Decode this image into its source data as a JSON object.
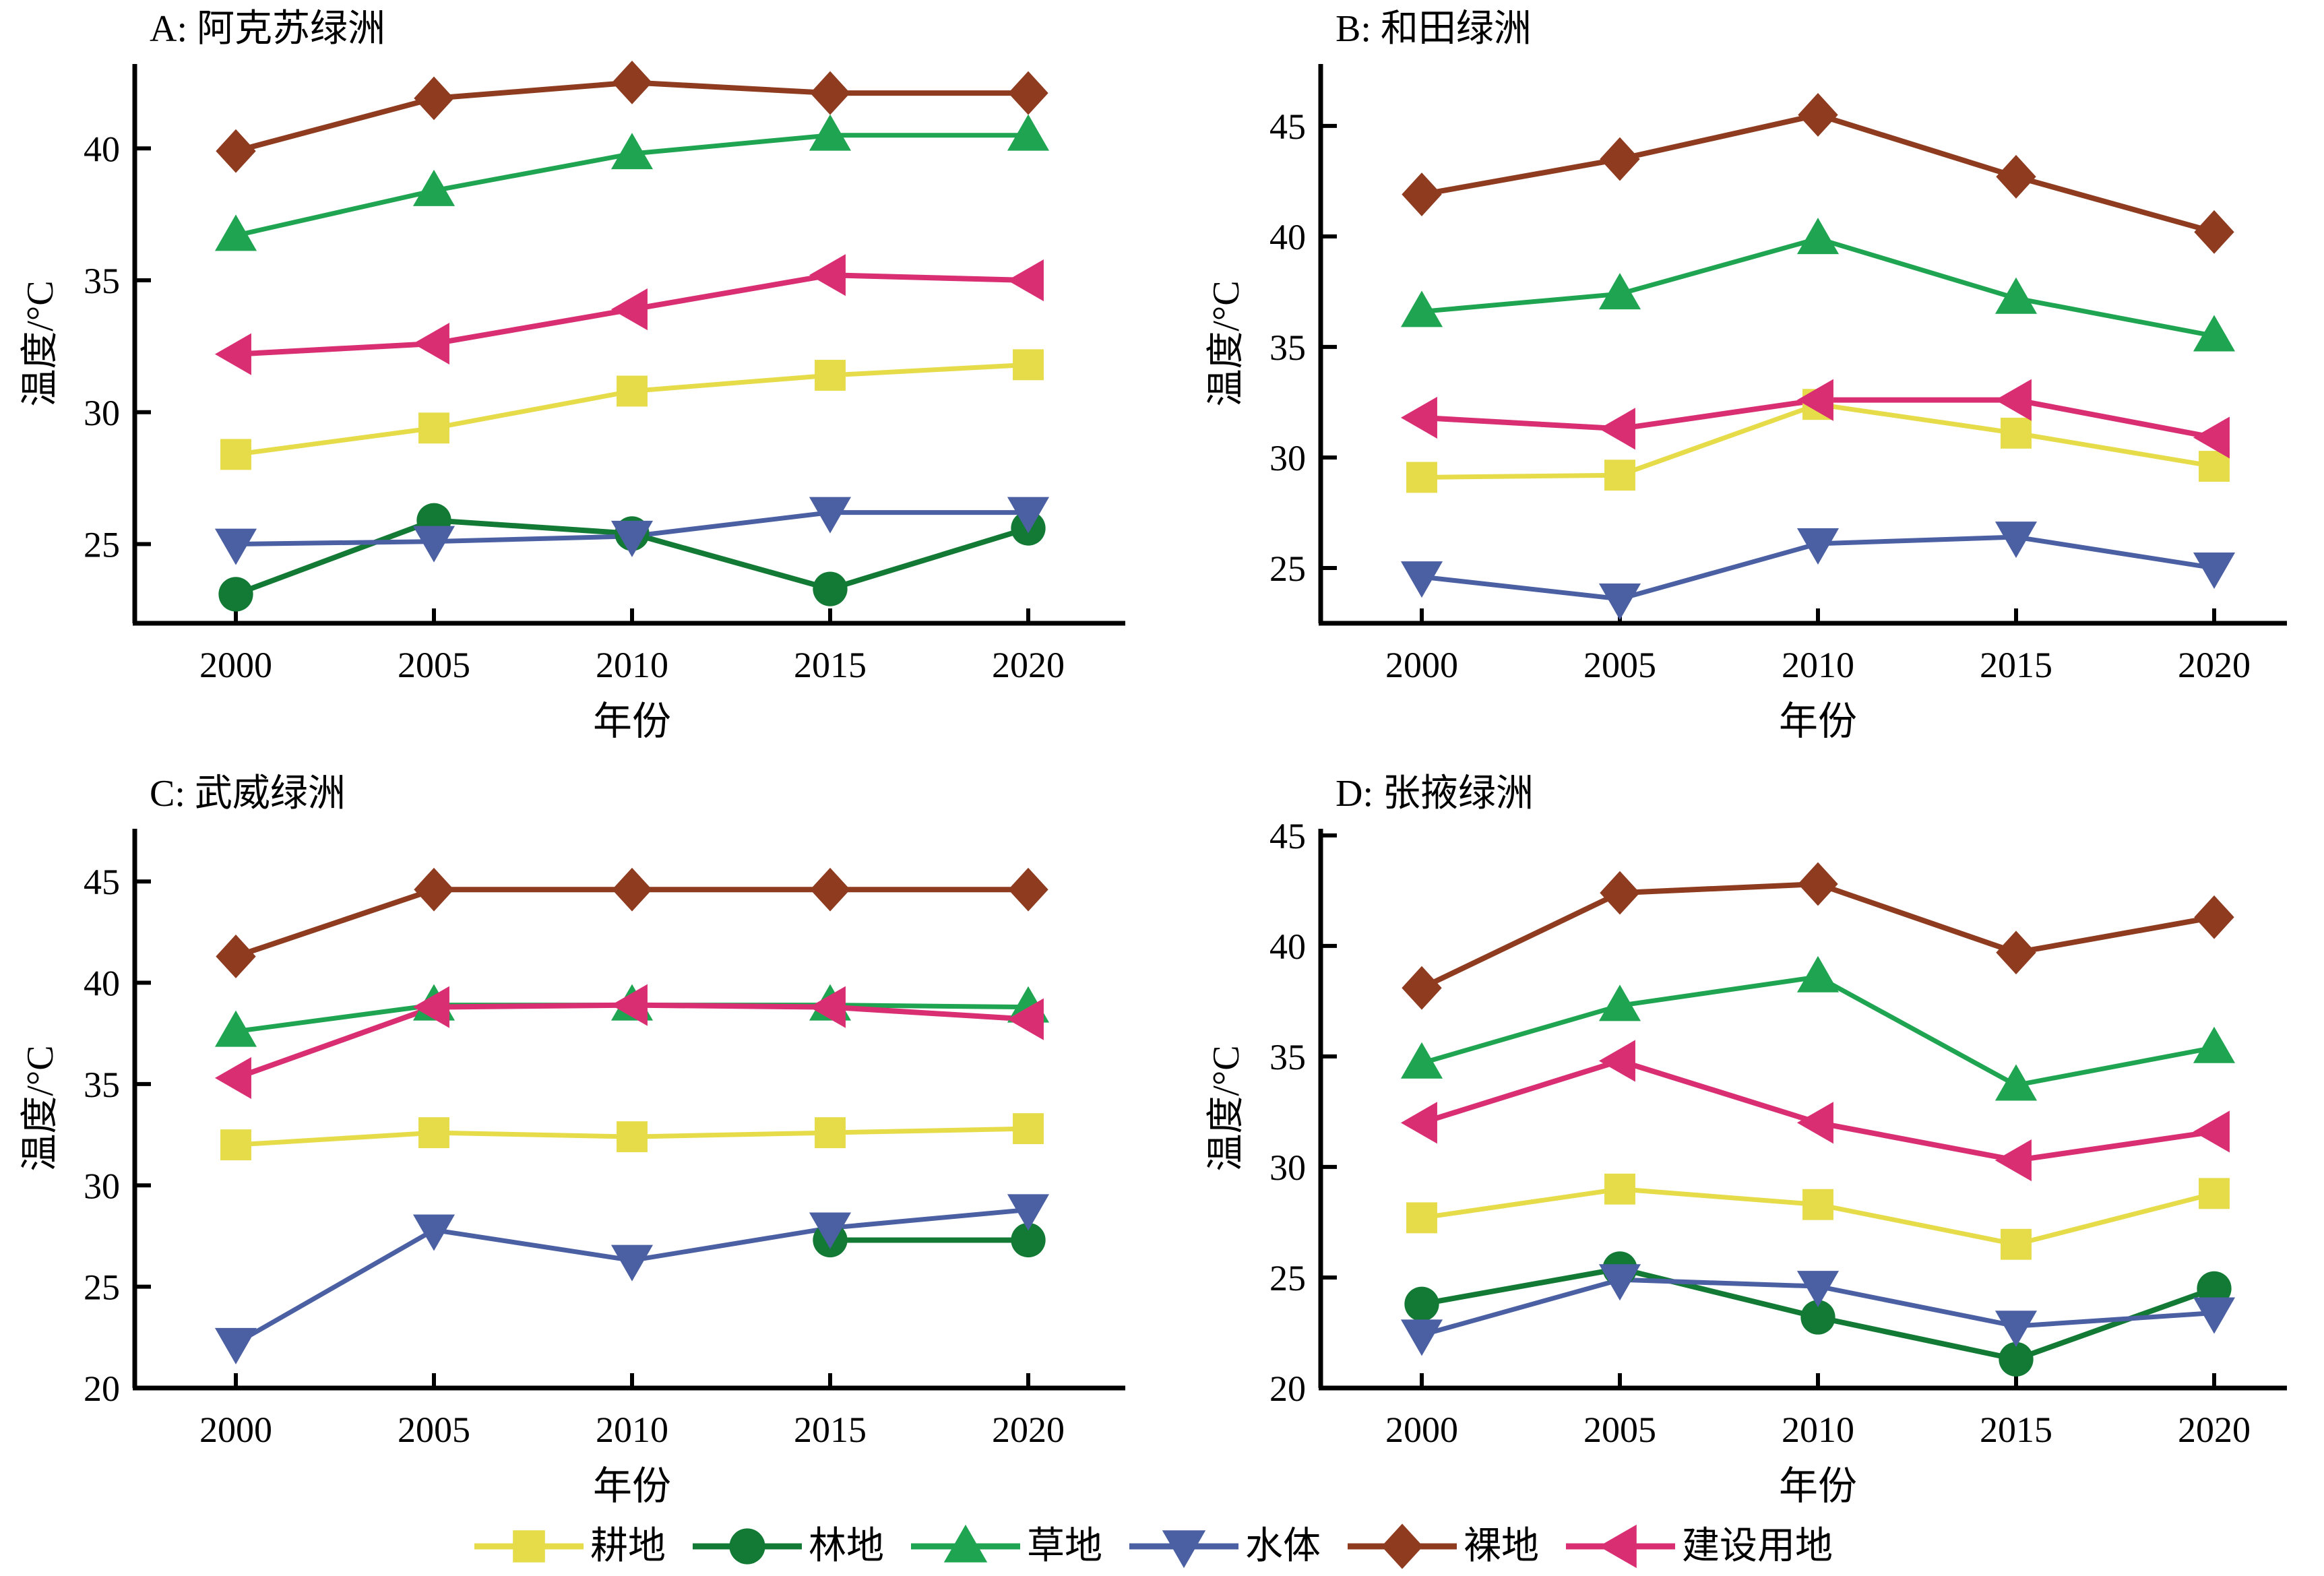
{
  "legend": [
    {
      "key": "cropland",
      "label": "耕地",
      "color": "#e6dc4a",
      "marker": "square"
    },
    {
      "key": "forest",
      "label": "林地",
      "color": "#137a35",
      "marker": "circle"
    },
    {
      "key": "grassland",
      "label": "草地",
      "color": "#1fa551",
      "marker": "triangle-up"
    },
    {
      "key": "water",
      "label": "水体",
      "color": "#4b5fa3",
      "marker": "triangle-down"
    },
    {
      "key": "bare",
      "label": "裸地",
      "color": "#8e3b1f",
      "marker": "diamond"
    },
    {
      "key": "built",
      "label": "建设用地",
      "color": "#d92e72",
      "marker": "triangle-left"
    }
  ],
  "chart_data": [
    {
      "type": "line",
      "title": "A: 阿克苏绿洲",
      "xlabel": "年份",
      "ylabel": "温度/°C",
      "x": [
        2000,
        2005,
        2010,
        2015,
        2020
      ],
      "xticks": [
        "2000",
        "2005",
        "2010",
        "2015",
        "2020"
      ],
      "yticks": [
        25,
        30,
        35,
        40
      ],
      "ylim": [
        22,
        43.2
      ],
      "series": [
        {
          "key": "cropland",
          "name": "耕地",
          "values": [
            28.4,
            29.4,
            30.8,
            31.4,
            31.8
          ]
        },
        {
          "key": "forest",
          "name": "林地",
          "values": [
            23.1,
            25.9,
            25.4,
            23.3,
            25.6
          ]
        },
        {
          "key": "grassland",
          "name": "草地",
          "values": [
            36.7,
            38.4,
            39.8,
            40.5,
            40.5
          ]
        },
        {
          "key": "water",
          "name": "水体",
          "values": [
            25.0,
            25.1,
            25.3,
            26.2,
            26.2
          ]
        },
        {
          "key": "bare",
          "name": "裸地",
          "values": [
            39.9,
            41.9,
            42.5,
            42.1,
            42.1
          ]
        },
        {
          "key": "built",
          "name": "建设用地",
          "values": [
            32.2,
            32.6,
            33.9,
            35.2,
            35.0
          ]
        }
      ]
    },
    {
      "type": "line",
      "title": "B: 和田绿洲",
      "xlabel": "年份",
      "ylabel": "温度/°C",
      "x": [
        2000,
        2005,
        2010,
        2015,
        2020
      ],
      "xticks": [
        "2000",
        "2005",
        "2010",
        "2015",
        "2020"
      ],
      "yticks": [
        25,
        30,
        35,
        40,
        45
      ],
      "ylim": [
        22.5,
        47.8
      ],
      "series": [
        {
          "key": "cropland",
          "name": "耕地",
          "values": [
            29.1,
            29.2,
            32.4,
            31.1,
            29.6
          ]
        },
        {
          "key": "grassland",
          "name": "草地",
          "values": [
            36.6,
            37.4,
            39.9,
            37.2,
            35.5
          ]
        },
        {
          "key": "water",
          "name": "水体",
          "values": [
            24.6,
            23.6,
            26.1,
            26.4,
            25.0
          ]
        },
        {
          "key": "bare",
          "name": "裸地",
          "values": [
            41.9,
            43.5,
            45.5,
            42.7,
            40.2
          ]
        },
        {
          "key": "built",
          "name": "建设用地",
          "values": [
            31.8,
            31.3,
            32.6,
            32.6,
            30.9
          ]
        }
      ]
    },
    {
      "type": "line",
      "title": "C: 武威绿洲",
      "xlabel": "年份",
      "ylabel": "温度/°C",
      "x": [
        2000,
        2005,
        2010,
        2015,
        2020
      ],
      "xticks": [
        "2000",
        "2005",
        "2010",
        "2015",
        "2020"
      ],
      "yticks": [
        20,
        25,
        30,
        35,
        40,
        45
      ],
      "ylim": [
        20,
        47.6
      ],
      "series": [
        {
          "key": "cropland",
          "name": "耕地",
          "values": [
            32.0,
            32.6,
            32.4,
            32.6,
            32.8
          ]
        },
        {
          "key": "forest",
          "name": "林地",
          "values": [
            null,
            null,
            null,
            27.3,
            27.3
          ]
        },
        {
          "key": "grassland",
          "name": "草地",
          "values": [
            37.6,
            38.9,
            38.9,
            38.9,
            38.8
          ]
        },
        {
          "key": "water",
          "name": "水体",
          "values": [
            22.2,
            27.8,
            26.3,
            27.9,
            28.8
          ]
        },
        {
          "key": "bare",
          "name": "裸地",
          "values": [
            41.3,
            44.6,
            44.6,
            44.6,
            44.6
          ]
        },
        {
          "key": "built",
          "name": "建设用地",
          "values": [
            35.3,
            38.8,
            38.9,
            38.8,
            38.2
          ]
        }
      ]
    },
    {
      "type": "line",
      "title": "D: 张掖绿洲",
      "xlabel": "年份",
      "ylabel": "温度/°C",
      "x": [
        2000,
        2005,
        2010,
        2015,
        2020
      ],
      "xticks": [
        "2000",
        "2005",
        "2010",
        "2015",
        "2020"
      ],
      "yticks": [
        20,
        25,
        30,
        35,
        40,
        45
      ],
      "ylim": [
        20,
        45.3
      ],
      "series": [
        {
          "key": "cropland",
          "name": "耕地",
          "values": [
            27.7,
            29.0,
            28.3,
            26.5,
            28.8
          ]
        },
        {
          "key": "forest",
          "name": "林地",
          "values": [
            23.8,
            25.4,
            23.2,
            21.3,
            24.5
          ]
        },
        {
          "key": "grassland",
          "name": "草地",
          "values": [
            34.7,
            37.3,
            38.6,
            33.7,
            35.4
          ]
        },
        {
          "key": "water",
          "name": "水体",
          "values": [
            22.4,
            24.9,
            24.6,
            22.8,
            23.4
          ]
        },
        {
          "key": "bare",
          "name": "裸地",
          "values": [
            38.1,
            42.4,
            42.8,
            39.7,
            41.3
          ]
        },
        {
          "key": "built",
          "name": "建设用地",
          "values": [
            32.0,
            34.8,
            32.0,
            30.3,
            31.6
          ]
        }
      ]
    }
  ]
}
